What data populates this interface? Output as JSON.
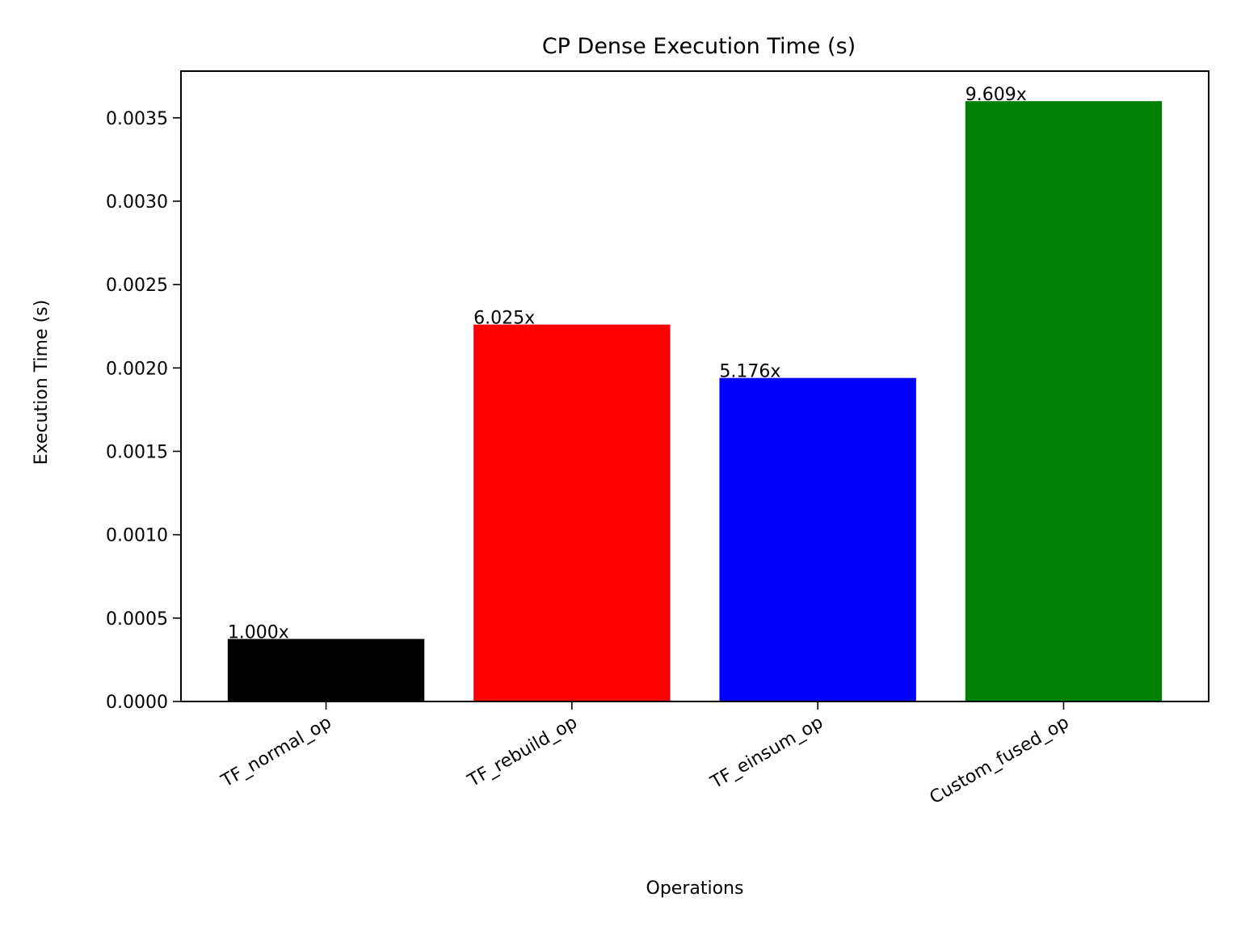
{
  "chart_data": {
    "type": "bar",
    "title": "CP Dense Execution Time (s)",
    "xlabel": "Operations",
    "ylabel": "Execution Time (s)",
    "categories": [
      "TF_normal_op",
      "TF_rebuild_op",
      "TF_einsum_op",
      "Custom_fused_op"
    ],
    "values": [
      0.000375,
      0.00226,
      0.00194,
      0.0036
    ],
    "bar_labels": [
      "1.000x",
      "6.025x",
      "5.176x",
      "9.609x"
    ],
    "colors": [
      "#000000",
      "#ff0000",
      "#0000ff",
      "#008000"
    ],
    "ylim": [
      0,
      0.00378
    ],
    "yticks": [
      0,
      0.0005,
      0.001,
      0.0015,
      0.002,
      0.0025,
      0.003,
      0.0035
    ],
    "ytick_labels": [
      "0.0000",
      "0.0005",
      "0.0010",
      "0.0015",
      "0.0020",
      "0.0025",
      "0.0030",
      "0.0035"
    ],
    "xtick_rotation_deg": -30,
    "grid": false,
    "legend": "none"
  }
}
